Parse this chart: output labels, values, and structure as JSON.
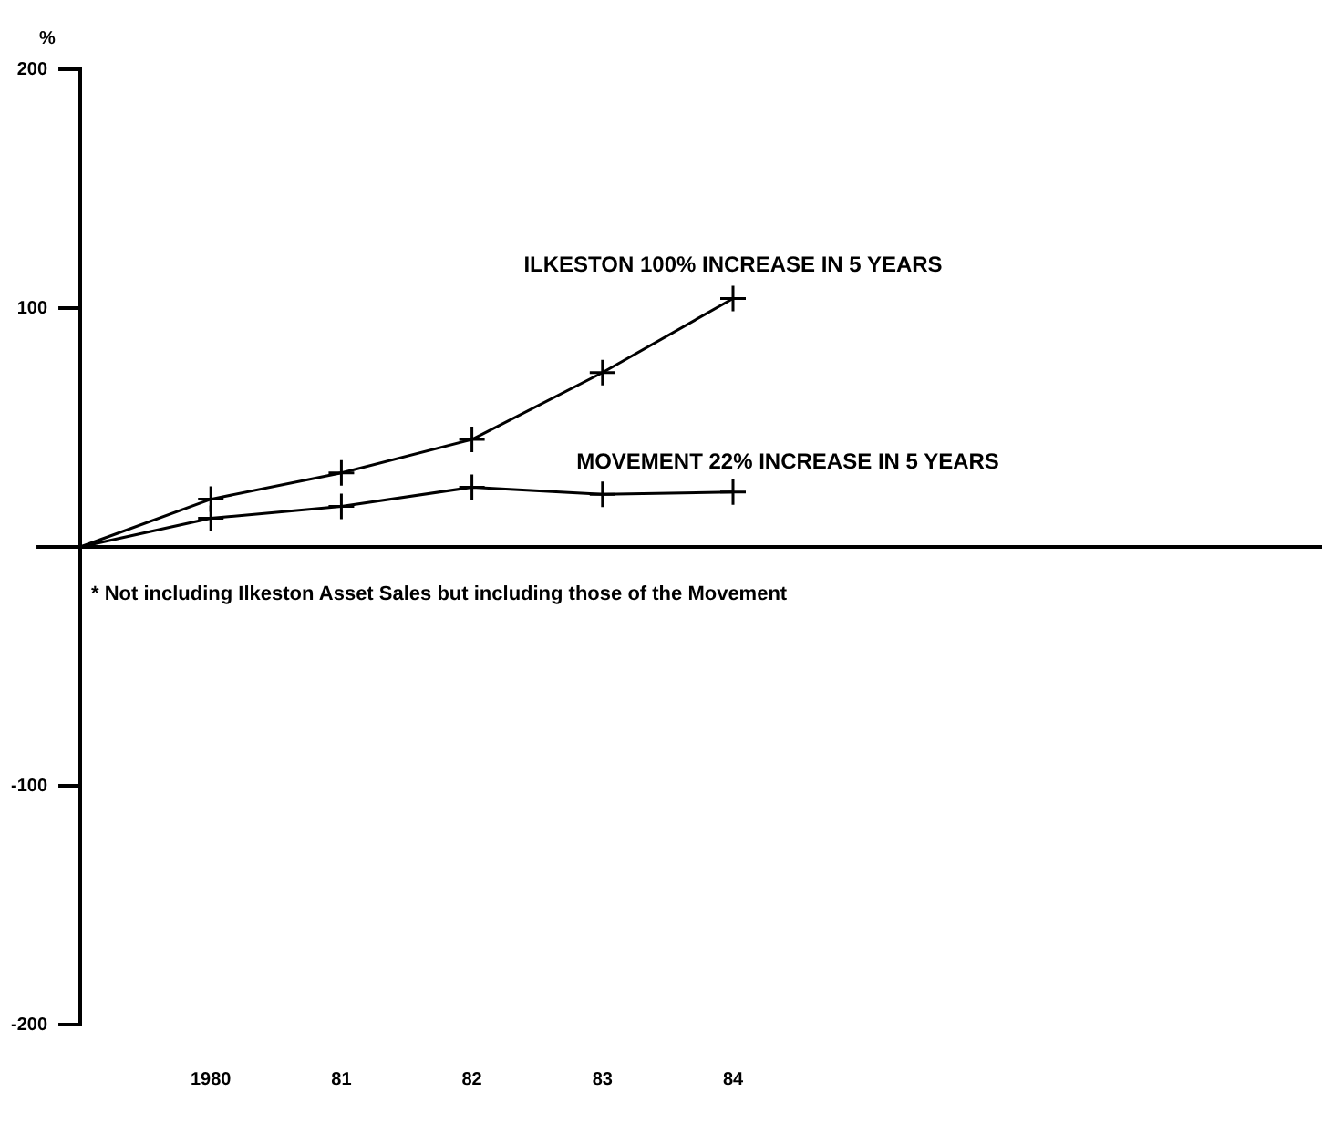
{
  "chart_data": {
    "type": "line",
    "ylabel": "%",
    "categories": [
      null,
      "1980",
      "81",
      "82",
      "83",
      "84"
    ],
    "series": [
      {
        "name": "ILKESTON 100% INCREASE IN 5 YEARS",
        "color": "#000000",
        "values": [
          0,
          20,
          31,
          45,
          73,
          104
        ]
      },
      {
        "name": "MOVEMENT 22% INCREASE IN 5 YEARS",
        "color": "#000000",
        "values": [
          0,
          12,
          17,
          25,
          22,
          23
        ]
      }
    ],
    "ylim": [
      -200,
      200
    ],
    "yticks": [
      -200,
      -100,
      {
        "value": 0,
        "label": null
      },
      100,
      200
    ],
    "ref_lines": [
      {
        "axis": "y",
        "value": 0
      }
    ],
    "annotations": [
      "* Not including Ilkeston Asset Sales but including those of the Movement"
    ],
    "grid": false,
    "legend": false,
    "marker": "cross",
    "line_style": "solid"
  }
}
